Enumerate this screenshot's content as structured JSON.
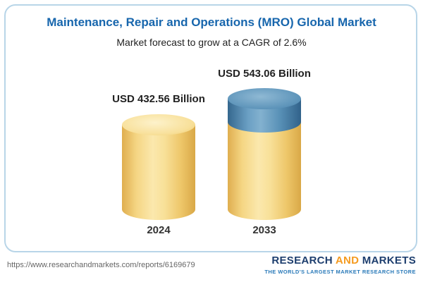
{
  "header": {
    "title": "Maintenance, Repair and Operations (MRO) Global Market",
    "subtitle": "Market forecast to grow at a CAGR of 2.6%"
  },
  "chart_data": {
    "type": "bar",
    "title": "Maintenance, Repair and Operations (MRO) Global Market",
    "subtitle": "Market forecast to grow at a CAGR of 2.6%",
    "categories": [
      "2024",
      "2033"
    ],
    "values": [
      432.56,
      543.06
    ],
    "unit": "USD Billion",
    "value_labels": [
      "USD 432.56 Billion",
      "USD 543.06 Billion"
    ],
    "cagr_percent": 2.6,
    "bar_style": "cylinder",
    "bar_color": "#f6d37c",
    "growth_cap_color": "#4f87ae",
    "legend_position": "none",
    "grid": false
  },
  "footer": {
    "url": "https://www.researchandmarkets.com/reports/6169679",
    "logo_research": "RESEARCH",
    "logo_and": "AND",
    "logo_markets": "MARKETS",
    "tagline": "THE WORLD'S LARGEST MARKET RESEARCH STORE"
  },
  "colors": {
    "title_blue": "#1766ad",
    "panel_border": "#b8d5e8",
    "logo_navy": "#1d3e6e",
    "logo_orange": "#f59b20",
    "tagline_blue": "#2a7ab9"
  }
}
